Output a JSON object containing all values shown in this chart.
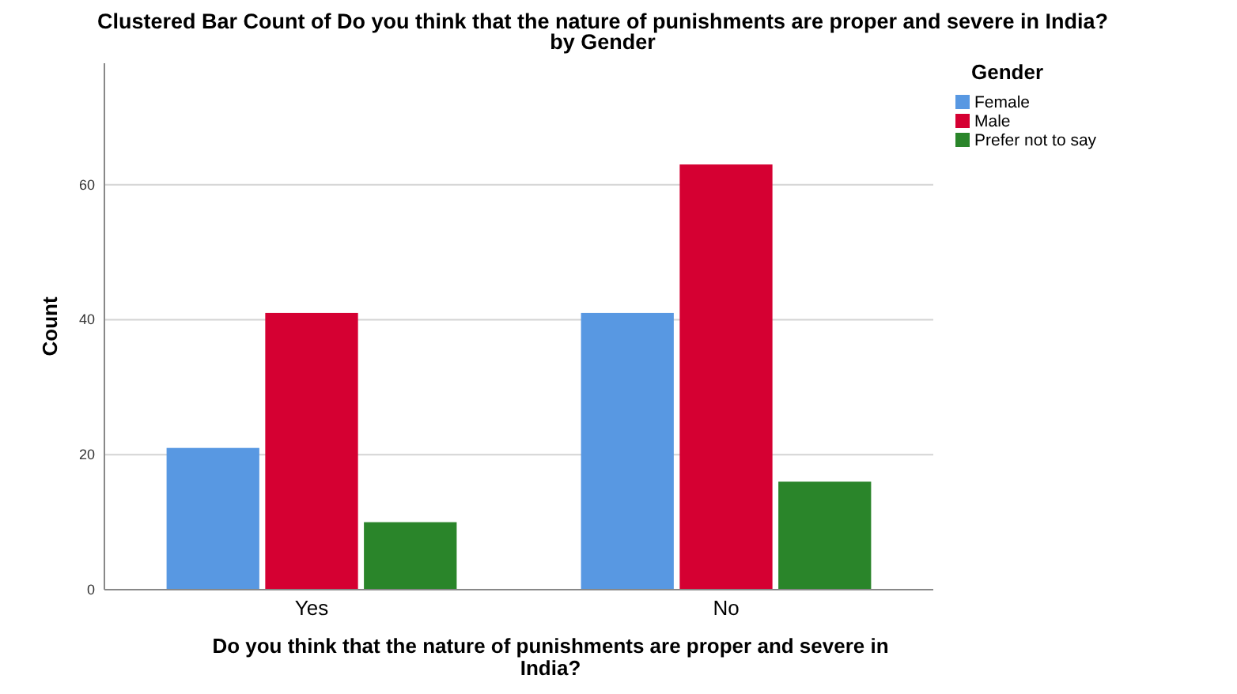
{
  "chart_data": {
    "type": "bar",
    "title": "Clustered Bar Count of Do you think that the nature of punishments are proper and severe in India? by Gender",
    "xlabel": "Do you think that the nature of punishments are proper and severe in India?",
    "ylabel": "Count",
    "legend_title": "Gender",
    "categories": [
      "Yes",
      "No"
    ],
    "series": [
      {
        "name": "Female",
        "color": "#5898e2",
        "values": [
          21,
          41
        ]
      },
      {
        "name": "Male",
        "color": "#d50032",
        "values": [
          41,
          63
        ]
      },
      {
        "name": "Prefer not to say",
        "color": "#2a852a",
        "values": [
          10,
          16
        ]
      }
    ],
    "ylim": [
      0,
      78
    ],
    "yticks": [
      0,
      20,
      40,
      60
    ],
    "grid": "y",
    "legend": "top right"
  }
}
